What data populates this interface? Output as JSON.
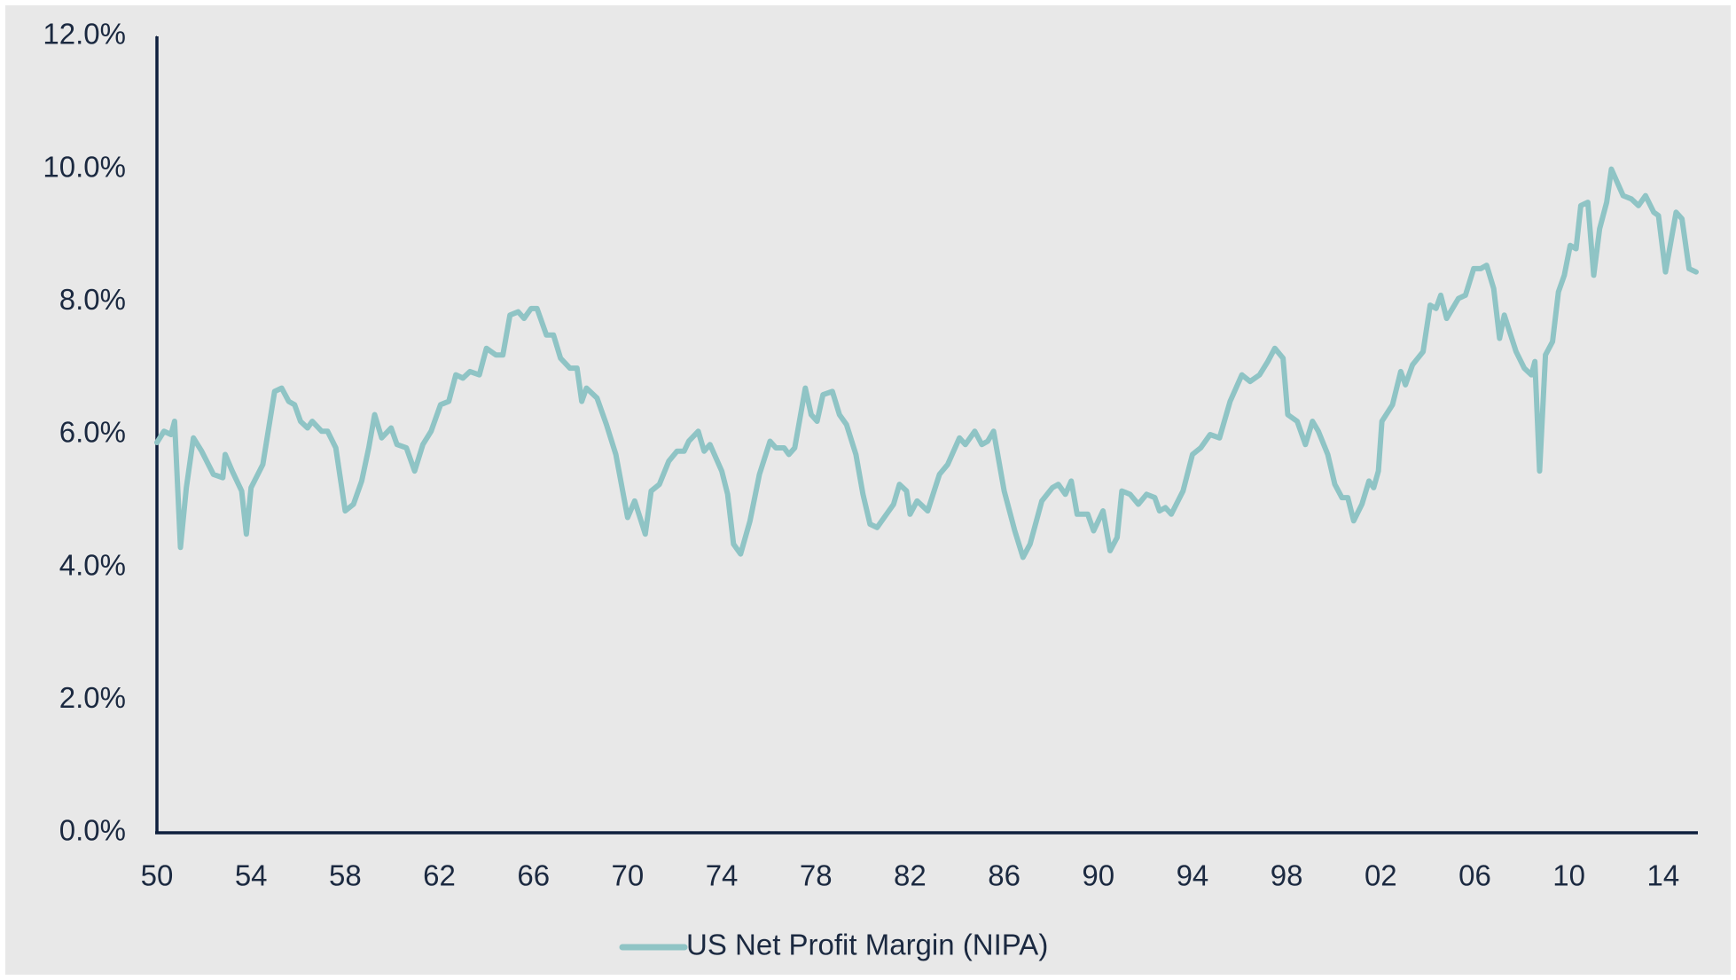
{
  "chart_data": {
    "type": "line",
    "x": [
      1950,
      1950.3,
      1950.6,
      1950.75,
      1951,
      1951.25,
      1951.55,
      1951.9,
      1952.4,
      1952.8,
      1952.9,
      1953.2,
      1953.6,
      1953.8,
      1954,
      1954.5,
      1955,
      1955.3,
      1955.6,
      1955.85,
      1956.1,
      1956.4,
      1956.6,
      1957,
      1957.25,
      1957.6,
      1958,
      1958.35,
      1958.7,
      1959,
      1959.25,
      1959.55,
      1959.95,
      1960.2,
      1960.6,
      1960.95,
      1961.3,
      1961.65,
      1962.05,
      1962.4,
      1962.7,
      1963,
      1963.3,
      1963.7,
      1964,
      1964.4,
      1964.7,
      1965,
      1965.35,
      1965.6,
      1965.9,
      1966.15,
      1966.55,
      1966.85,
      1967.15,
      1967.55,
      1967.85,
      1968.05,
      1968.25,
      1968.7,
      1969.1,
      1969.5,
      1970,
      1970.3,
      1970.75,
      1971,
      1971.35,
      1971.75,
      1972.1,
      1972.4,
      1972.6,
      1973,
      1973.25,
      1973.5,
      1974,
      1974.25,
      1974.5,
      1974.8,
      1975.2,
      1975.6,
      1976.05,
      1976.3,
      1976.65,
      1976.85,
      1977.1,
      1977.55,
      1977.8,
      1978.05,
      1978.3,
      1978.7,
      1979,
      1979.3,
      1979.7,
      1980,
      1980.3,
      1980.6,
      1981,
      1981.3,
      1981.55,
      1981.85,
      1982,
      1982.3,
      1982.75,
      1983.25,
      1983.6,
      1984.1,
      1984.35,
      1984.75,
      1985.05,
      1985.3,
      1985.55,
      1986,
      1986.45,
      1986.8,
      1987.1,
      1987.6,
      1988.05,
      1988.3,
      1988.6,
      1988.85,
      1989.1,
      1989.55,
      1989.8,
      1990.2,
      1990.5,
      1990.8,
      1991,
      1991.35,
      1991.7,
      1992.05,
      1992.4,
      1992.6,
      1992.85,
      1993.1,
      1993.6,
      1994,
      1994.35,
      1994.75,
      1995.15,
      1995.6,
      1996.1,
      1996.45,
      1996.85,
      1997.2,
      1997.5,
      1997.85,
      1998.05,
      1998.45,
      1998.8,
      1999.1,
      1999.35,
      1999.75,
      2000.05,
      2000.35,
      2000.6,
      2000.85,
      2001.2,
      2001.5,
      2001.7,
      2001.9,
      2002.05,
      2002.5,
      2002.85,
      2003.05,
      2003.35,
      2003.8,
      2004.1,
      2004.35,
      2004.55,
      2004.8,
      2005.3,
      2005.6,
      2005.95,
      2006.25,
      2006.5,
      2006.8,
      2007.05,
      2007.25,
      2007.75,
      2008.1,
      2008.4,
      2008.55,
      2008.75,
      2009,
      2009.3,
      2009.55,
      2009.8,
      2010.05,
      2010.3,
      2010.5,
      2010.8,
      2011.05,
      2011.3,
      2011.6,
      2011.8,
      2012.3,
      2012.65,
      2012.95,
      2013.25,
      2013.6,
      2013.8,
      2014.1,
      2014.55,
      2014.8,
      2015.1,
      2015.4
    ],
    "series": [
      {
        "name": "US Net Profit Margin (NIPA)",
        "color": "#8fc4c5",
        "values": [
          5.88,
          6.05,
          6.0,
          6.2,
          4.3,
          5.2,
          5.95,
          5.75,
          5.4,
          5.35,
          5.7,
          5.45,
          5.15,
          4.5,
          5.2,
          5.55,
          6.65,
          6.7,
          6.5,
          6.45,
          6.2,
          6.1,
          6.2,
          6.05,
          6.05,
          5.8,
          4.85,
          4.95,
          5.3,
          5.8,
          6.3,
          5.95,
          6.1,
          5.85,
          5.8,
          5.45,
          5.85,
          6.05,
          6.45,
          6.5,
          6.9,
          6.85,
          6.95,
          6.9,
          7.3,
          7.2,
          7.2,
          7.8,
          7.85,
          7.75,
          7.9,
          7.9,
          7.5,
          7.5,
          7.15,
          7.0,
          7.0,
          6.5,
          6.7,
          6.55,
          6.15,
          5.7,
          4.75,
          5.0,
          4.5,
          5.15,
          5.25,
          5.6,
          5.75,
          5.75,
          5.9,
          6.05,
          5.75,
          5.85,
          5.45,
          5.1,
          4.35,
          4.2,
          4.7,
          5.4,
          5.9,
          5.8,
          5.8,
          5.7,
          5.8,
          6.7,
          6.3,
          6.2,
          6.6,
          6.65,
          6.3,
          6.15,
          5.7,
          5.1,
          4.65,
          4.6,
          4.8,
          4.95,
          5.25,
          5.15,
          4.8,
          5.0,
          4.85,
          5.4,
          5.55,
          5.95,
          5.85,
          6.05,
          5.85,
          5.9,
          6.05,
          5.15,
          4.55,
          4.15,
          4.35,
          5.0,
          5.2,
          5.25,
          5.1,
          5.3,
          4.8,
          4.8,
          4.55,
          4.85,
          4.25,
          4.45,
          5.15,
          5.1,
          4.95,
          5.1,
          5.05,
          4.85,
          4.9,
          4.8,
          5.15,
          5.7,
          5.8,
          6.0,
          5.95,
          6.5,
          6.9,
          6.8,
          6.9,
          7.1,
          7.3,
          7.15,
          6.3,
          6.2,
          5.85,
          6.2,
          6.05,
          5.7,
          5.25,
          5.05,
          5.05,
          4.7,
          4.95,
          5.3,
          5.2,
          5.45,
          6.2,
          6.45,
          6.95,
          6.75,
          7.05,
          7.25,
          7.95,
          7.9,
          8.1,
          7.75,
          8.05,
          8.1,
          8.5,
          8.5,
          8.55,
          8.2,
          7.45,
          7.8,
          7.25,
          7.0,
          6.9,
          7.1,
          5.45,
          7.2,
          7.4,
          8.15,
          8.4,
          8.85,
          8.8,
          9.45,
          9.5,
          8.4,
          9.1,
          9.5,
          10.0,
          9.6,
          9.55,
          9.45,
          9.6,
          9.35,
          9.3,
          8.45,
          9.35,
          9.25,
          8.5,
          8.45
        ]
      }
    ],
    "xlim": [
      1950,
      2015.4
    ],
    "xticks": [
      {
        "value": 1950,
        "label": "50"
      },
      {
        "value": 1954,
        "label": "54"
      },
      {
        "value": 1958,
        "label": "58"
      },
      {
        "value": 1962,
        "label": "62"
      },
      {
        "value": 1966,
        "label": "66"
      },
      {
        "value": 1970,
        "label": "70"
      },
      {
        "value": 1974,
        "label": "74"
      },
      {
        "value": 1978,
        "label": "78"
      },
      {
        "value": 1982,
        "label": "82"
      },
      {
        "value": 1986,
        "label": "86"
      },
      {
        "value": 1990,
        "label": "90"
      },
      {
        "value": 1994,
        "label": "94"
      },
      {
        "value": 1998,
        "label": "98"
      },
      {
        "value": 2002,
        "label": "02"
      },
      {
        "value": 2006,
        "label": "06"
      },
      {
        "value": 2010,
        "label": "10"
      },
      {
        "value": 2014,
        "label": "14"
      }
    ],
    "ylim": [
      0,
      12
    ],
    "yticks": [
      {
        "value": 0,
        "label": "0.0%"
      },
      {
        "value": 2,
        "label": "2.0%"
      },
      {
        "value": 4,
        "label": "4.0%"
      },
      {
        "value": 6,
        "label": "6.0%"
      },
      {
        "value": 8,
        "label": "8.0%"
      },
      {
        "value": 10,
        "label": "10.0%"
      },
      {
        "value": 12,
        "label": "12.0%"
      }
    ],
    "grid": false,
    "legend": "bottom"
  }
}
